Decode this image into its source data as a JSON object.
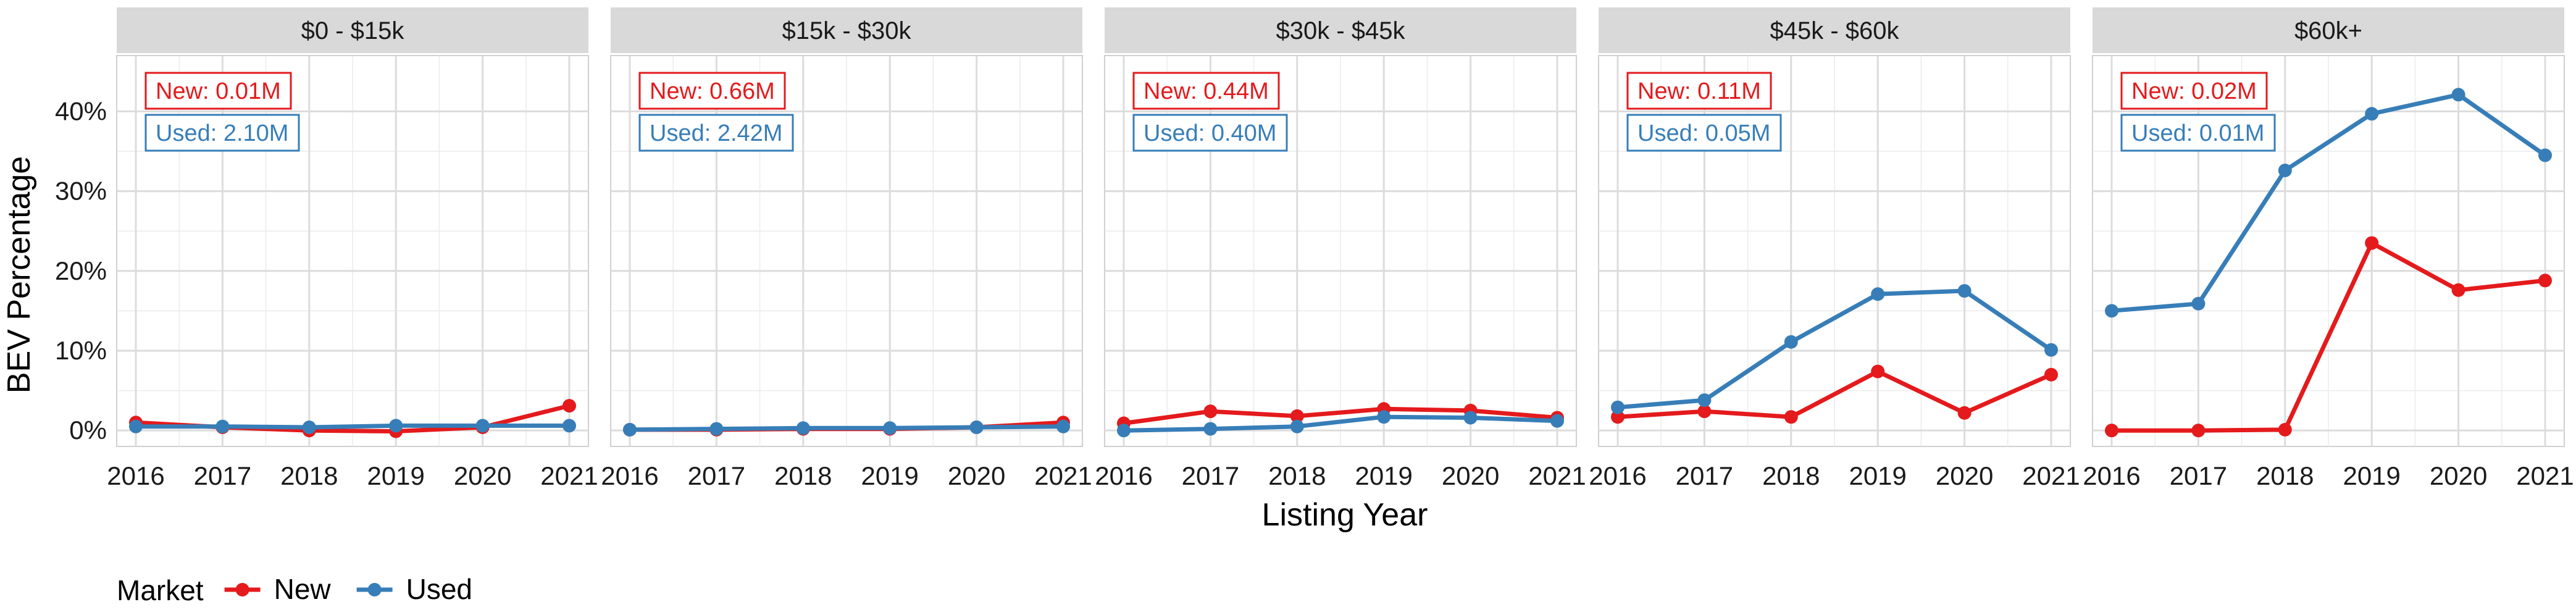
{
  "chart_data": {
    "type": "line",
    "xlabel": "Listing Year",
    "ylabel": "BEV Percentage",
    "x": [
      2016,
      2017,
      2018,
      2019,
      2020,
      2021
    ],
    "xticks": [
      "2016",
      "2017",
      "2018",
      "2019",
      "2020",
      "2021"
    ],
    "ylim": [
      -0.02,
      0.47
    ],
    "yticks": [
      0,
      0.1,
      0.2,
      0.3,
      0.4
    ],
    "ytick_labels": [
      "0%",
      "10%",
      "20%",
      "30%",
      "40%"
    ],
    "grid": true,
    "legend": {
      "title": "Market",
      "position": "bottom-left",
      "entries": [
        {
          "name": "New",
          "color": "#e41a1c"
        },
        {
          "name": "Used",
          "color": "#377eb8"
        }
      ]
    },
    "panels": [
      {
        "title": "$0 - $15k",
        "new_label": "New: 0.01M",
        "used_label": "Used: 2.10M",
        "series": [
          {
            "name": "New",
            "color": "#e41a1c",
            "values": [
              0.01,
              0.004,
              0.0,
              -0.001,
              0.004,
              0.031
            ]
          },
          {
            "name": "Used",
            "color": "#377eb8",
            "values": [
              0.005,
              0.005,
              0.004,
              0.006,
              0.006,
              0.006
            ]
          }
        ]
      },
      {
        "title": "$15k - $30k",
        "new_label": "New: 0.66M",
        "used_label": "Used: 2.42M",
        "series": [
          {
            "name": "New",
            "color": "#e41a1c",
            "values": [
              0.001,
              0.001,
              0.002,
              0.002,
              0.004,
              0.01
            ]
          },
          {
            "name": "Used",
            "color": "#377eb8",
            "values": [
              0.001,
              0.002,
              0.003,
              0.003,
              0.004,
              0.005
            ]
          }
        ]
      },
      {
        "title": "$30k - $45k",
        "new_label": "New: 0.44M",
        "used_label": "Used: 0.40M",
        "series": [
          {
            "name": "New",
            "color": "#e41a1c",
            "values": [
              0.009,
              0.024,
              0.018,
              0.027,
              0.025,
              0.016
            ]
          },
          {
            "name": "Used",
            "color": "#377eb8",
            "values": [
              0.0,
              0.002,
              0.005,
              0.017,
              0.016,
              0.012
            ]
          }
        ]
      },
      {
        "title": "$45k - $60k",
        "new_label": "New: 0.11M",
        "used_label": "Used: 0.05M",
        "series": [
          {
            "name": "New",
            "color": "#e41a1c",
            "values": [
              0.017,
              0.024,
              0.017,
              0.074,
              0.022,
              0.07
            ]
          },
          {
            "name": "Used",
            "color": "#377eb8",
            "values": [
              0.029,
              0.038,
              0.111,
              0.171,
              0.175,
              0.101
            ]
          }
        ]
      },
      {
        "title": "$60k+",
        "new_label": "New: 0.02M",
        "used_label": "Used: 0.01M",
        "series": [
          {
            "name": "New",
            "color": "#e41a1c",
            "values": [
              0.0,
              0.0,
              0.001,
              0.235,
              0.176,
              0.188
            ]
          },
          {
            "name": "Used",
            "color": "#377eb8",
            "values": [
              0.15,
              0.159,
              0.326,
              0.397,
              0.421,
              0.345
            ]
          }
        ]
      }
    ]
  }
}
